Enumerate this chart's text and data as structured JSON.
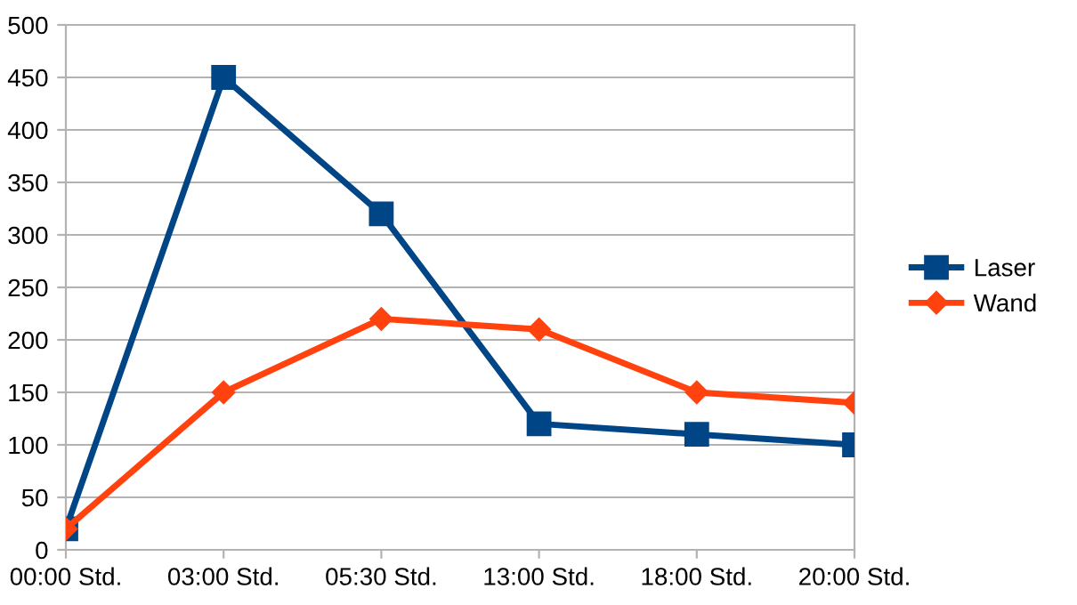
{
  "chart_data": {
    "type": "line",
    "categories": [
      "00:00 Std.",
      "03:00 Std.",
      "05:30 Std.",
      "13:00 Std.",
      "18:00 Std.",
      "20:00 Std."
    ],
    "series": [
      {
        "name": "Laser",
        "color": "#004586",
        "marker": "square",
        "values": [
          20,
          450,
          320,
          120,
          110,
          100
        ]
      },
      {
        "name": "Wand",
        "color": "#ff420e",
        "marker": "diamond",
        "values": [
          20,
          150,
          220,
          210,
          150,
          140
        ]
      }
    ],
    "ylim": [
      0,
      500
    ],
    "yticks": [
      0,
      50,
      100,
      150,
      200,
      250,
      300,
      350,
      400,
      450,
      500
    ],
    "grid": "y",
    "legend": "right",
    "line_style": "solid"
  }
}
